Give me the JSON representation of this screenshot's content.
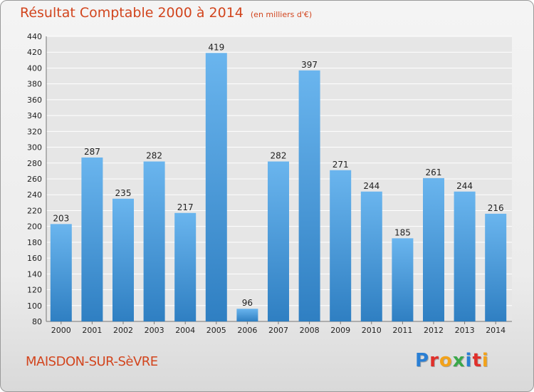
{
  "header": {
    "title": "Résultat Comptable 2000 à 2014",
    "subtitle": "(en milliers d'€)"
  },
  "footer": {
    "commune": "MAISDON-SUR-SèVRE",
    "logo_letters": [
      {
        "ch": "P",
        "color": "#2a7fd4"
      },
      {
        "ch": "r",
        "color": "#e0302b"
      },
      {
        "ch": "o",
        "color": "#f2a21a"
      },
      {
        "ch": "x",
        "color": "#3aa84a"
      },
      {
        "ch": "i",
        "color": "#2a7fd4"
      },
      {
        "ch": "t",
        "color": "#e0302b"
      },
      {
        "ch": "i",
        "color": "#f2a21a"
      }
    ]
  },
  "colors": {
    "bar_top": "#6ab5ee",
    "bar_bottom": "#2f7fc2",
    "grid": "#ffffff",
    "axis_text": "#222222"
  },
  "chart_data": {
    "type": "bar",
    "categories": [
      "2000",
      "2001",
      "2002",
      "2003",
      "2004",
      "2005",
      "2006",
      "2007",
      "2008",
      "2009",
      "2010",
      "2011",
      "2012",
      "2013",
      "2014"
    ],
    "values": [
      203,
      287,
      235,
      282,
      217,
      419,
      96,
      282,
      397,
      271,
      244,
      185,
      261,
      244,
      216
    ],
    "ylim": [
      80,
      440
    ],
    "yticks": [
      80,
      100,
      120,
      140,
      160,
      180,
      200,
      220,
      240,
      260,
      280,
      300,
      320,
      340,
      360,
      380,
      400,
      420,
      440
    ],
    "grid": true,
    "legend": "none"
  }
}
